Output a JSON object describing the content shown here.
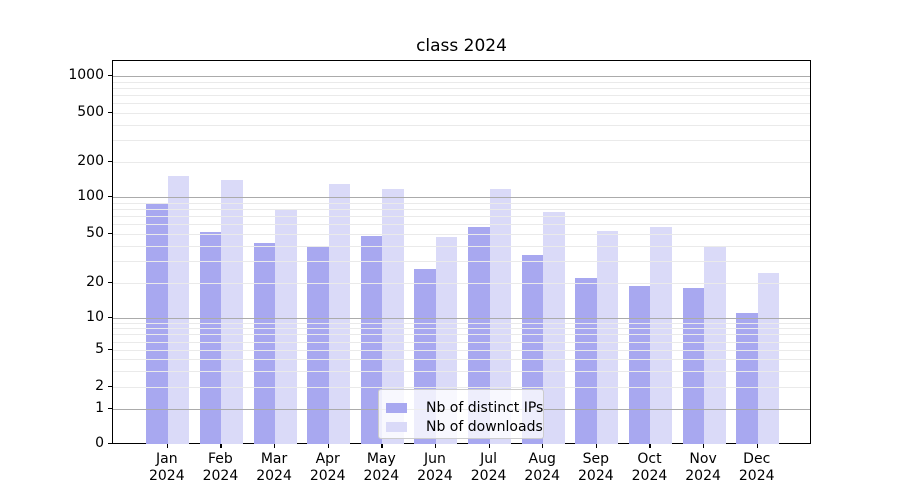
{
  "title": "class 2024",
  "chart_data": {
    "type": "bar",
    "title": "class 2024",
    "categories": [
      "Jan 2024",
      "Feb 2024",
      "Mar 2024",
      "Apr 2024",
      "May 2024",
      "Jun 2024",
      "Jul 2024",
      "Aug 2024",
      "Sep 2024",
      "Oct 2024",
      "Nov 2024",
      "Dec 2024"
    ],
    "series": [
      {
        "name": "Nb of distinct IPs",
        "color": "#a8a8f0",
        "values": [
          90,
          52,
          42,
          40,
          48,
          26,
          57,
          34,
          22,
          19,
          18,
          11
        ]
      },
      {
        "name": "Nb of downloads",
        "color": "#dadaf8",
        "values": [
          150,
          140,
          80,
          130,
          118,
          47,
          116,
          75,
          53,
          57,
          40,
          24
        ]
      }
    ],
    "xlabel": "",
    "ylabel": "",
    "yscale": "symlog",
    "y_tick_labels": [
      "0",
      "1",
      "2",
      "5",
      "10",
      "20",
      "50",
      "100",
      "200",
      "500",
      "1000"
    ],
    "ylim": [
      0,
      1300
    ],
    "grid": true,
    "grid_major_at": [
      1,
      10,
      100,
      1000
    ],
    "legend_position": "lower center"
  }
}
